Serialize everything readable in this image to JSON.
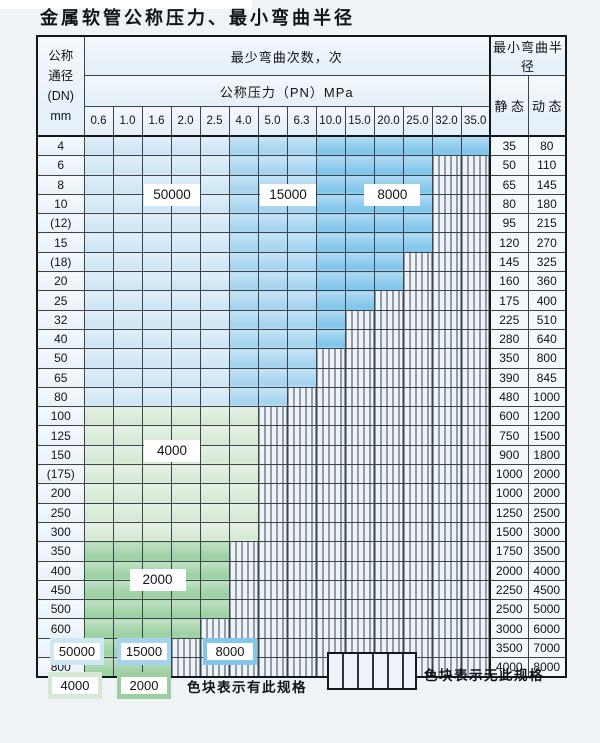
{
  "title": "金属软管公称压力、最小弯曲半径",
  "colors": {
    "c50000": "#cfe6f5",
    "c15000": "#a5d4f0",
    "c8000": "#82c6ec",
    "c4000": "#d6e9d4",
    "c2000": "#9cd0a2",
    "hatch_bg": "#edf3f9",
    "grid": "#39444c"
  },
  "table": {
    "corner_lines": [
      "公称",
      "通径",
      "(DN)",
      "mm"
    ],
    "bend_times_header": "最少弯曲次数，次",
    "pressure_header": "公称压力（PN）MPa",
    "radius_header": "最小弯曲半径",
    "static_label": "静 态",
    "dynamic_label": "动 态",
    "pressures": [
      "0.6",
      "1.0",
      "1.6",
      "2.0",
      "2.5",
      "4.0",
      "5.0",
      "6.3",
      "10.0",
      "15.0",
      "20.0",
      "25.0",
      "32.0",
      "35.0"
    ],
    "rows": [
      {
        "dn": "4",
        "static": "35",
        "dynamic": "80",
        "through": "35.0",
        "group": "blue"
      },
      {
        "dn": "6",
        "static": "50",
        "dynamic": "110",
        "through": "25.0",
        "group": "blue"
      },
      {
        "dn": "8",
        "static": "65",
        "dynamic": "145",
        "through": "25.0",
        "group": "blue"
      },
      {
        "dn": "10",
        "static": "80",
        "dynamic": "180",
        "through": "25.0",
        "group": "blue"
      },
      {
        "dn": "(12)",
        "static": "95",
        "dynamic": "215",
        "through": "25.0",
        "group": "blue"
      },
      {
        "dn": "15",
        "static": "120",
        "dynamic": "270",
        "through": "25.0",
        "group": "blue"
      },
      {
        "dn": "(18)",
        "static": "145",
        "dynamic": "325",
        "through": "20.0",
        "group": "blue"
      },
      {
        "dn": "20",
        "static": "160",
        "dynamic": "360",
        "through": "20.0",
        "group": "blue"
      },
      {
        "dn": "25",
        "static": "175",
        "dynamic": "400",
        "through": "15.0",
        "group": "blue"
      },
      {
        "dn": "32",
        "static": "225",
        "dynamic": "510",
        "through": "10.0",
        "group": "blue"
      },
      {
        "dn": "40",
        "static": "280",
        "dynamic": "640",
        "through": "10.0",
        "group": "blue"
      },
      {
        "dn": "50",
        "static": "350",
        "dynamic": "800",
        "through": "6.3",
        "group": "blue"
      },
      {
        "dn": "65",
        "static": "390",
        "dynamic": "845",
        "through": "6.3",
        "group": "blue"
      },
      {
        "dn": "80",
        "static": "480",
        "dynamic": "1000",
        "through": "5.0",
        "group": "blue"
      },
      {
        "dn": "100",
        "static": "600",
        "dynamic": "1200",
        "through": "4.0",
        "group": "c4000"
      },
      {
        "dn": "125",
        "static": "750",
        "dynamic": "1500",
        "through": "4.0",
        "group": "c4000"
      },
      {
        "dn": "150",
        "static": "900",
        "dynamic": "1800",
        "through": "4.0",
        "group": "c4000"
      },
      {
        "dn": "(175)",
        "static": "1000",
        "dynamic": "2000",
        "through": "4.0",
        "group": "c4000"
      },
      {
        "dn": "200",
        "static": "1000",
        "dynamic": "2000",
        "through": "4.0",
        "group": "c4000"
      },
      {
        "dn": "250",
        "static": "1250",
        "dynamic": "2500",
        "through": "4.0",
        "group": "c4000"
      },
      {
        "dn": "300",
        "static": "1500",
        "dynamic": "3000",
        "through": "4.0",
        "group": "c4000"
      },
      {
        "dn": "350",
        "static": "1750",
        "dynamic": "3500",
        "through": "2.5",
        "group": "c2000"
      },
      {
        "dn": "400",
        "static": "2000",
        "dynamic": "4000",
        "through": "2.5",
        "group": "c2000"
      },
      {
        "dn": "450",
        "static": "2250",
        "dynamic": "4500",
        "through": "2.5",
        "group": "c2000"
      },
      {
        "dn": "500",
        "static": "2500",
        "dynamic": "5000",
        "through": "2.5",
        "group": "c2000"
      },
      {
        "dn": "600",
        "static": "3000",
        "dynamic": "6000",
        "through": "2.0",
        "group": "c2000"
      },
      {
        "dn": "700",
        "static": "3500",
        "dynamic": "7000",
        "through": "1.6",
        "group": "c2000"
      },
      {
        "dn": "800",
        "static": "4000",
        "dynamic": "8000",
        "through": "1.6",
        "group": "c2000"
      }
    ]
  },
  "region_labels": [
    {
      "text": "50000",
      "col_boundary": 3,
      "row_boundary": 4
    },
    {
      "text": "15000",
      "col_boundary": 7,
      "row_boundary": 4
    },
    {
      "text": "8000",
      "col_boundary": 10.6,
      "row_boundary": 4
    },
    {
      "text": "4000",
      "col_boundary": 3,
      "row_boundary": 18
    },
    {
      "text": "2000",
      "col_boundary": 2.5,
      "row_boundary": 25
    }
  ],
  "legend": {
    "items_available": [
      {
        "label": "50000",
        "color_key": "c50000"
      },
      {
        "label": "15000",
        "color_key": "c15000"
      },
      {
        "label": "8000",
        "color_key": "c8000"
      },
      {
        "label": "4000",
        "color_key": "c4000"
      },
      {
        "label": "2000",
        "color_key": "c2000"
      }
    ],
    "available_note": "色块表示有此规格",
    "unavailable_note": "色块表示无此规格"
  },
  "chart_data": {
    "type": "table",
    "title": "金属软管公称压力、最小弯曲半径",
    "pn_columns_mpa": [
      0.6,
      1.0,
      1.6,
      2.0,
      2.5,
      4.0,
      5.0,
      6.3,
      10.0,
      15.0,
      20.0,
      25.0,
      32.0,
      35.0
    ],
    "row_columns": [
      "DN",
      "max_available_PN",
      "static_radius",
      "dynamic_radius"
    ],
    "rows": [
      [
        "4",
        35.0,
        35,
        80
      ],
      [
        "6",
        25.0,
        50,
        110
      ],
      [
        "8",
        25.0,
        65,
        145
      ],
      [
        "10",
        25.0,
        80,
        180
      ],
      [
        "(12)",
        25.0,
        95,
        215
      ],
      [
        "15",
        25.0,
        120,
        270
      ],
      [
        "(18)",
        20.0,
        145,
        325
      ],
      [
        "20",
        20.0,
        160,
        360
      ],
      [
        "25",
        15.0,
        175,
        400
      ],
      [
        "32",
        10.0,
        225,
        510
      ],
      [
        "40",
        10.0,
        280,
        640
      ],
      [
        "50",
        6.3,
        350,
        800
      ],
      [
        "65",
        6.3,
        390,
        845
      ],
      [
        "80",
        5.0,
        480,
        1000
      ],
      [
        "100",
        4.0,
        600,
        1200
      ],
      [
        "125",
        4.0,
        750,
        1500
      ],
      [
        "150",
        4.0,
        900,
        1800
      ],
      [
        "(175)",
        4.0,
        1000,
        2000
      ],
      [
        "200",
        4.0,
        1000,
        2000
      ],
      [
        "250",
        4.0,
        1250,
        2500
      ],
      [
        "300",
        4.0,
        1500,
        3000
      ],
      [
        "350",
        2.5,
        1750,
        3500
      ],
      [
        "400",
        2.5,
        2000,
        4000
      ],
      [
        "450",
        2.5,
        2250,
        4500
      ],
      [
        "500",
        2.5,
        2500,
        5000
      ],
      [
        "600",
        2.0,
        3000,
        6000
      ],
      [
        "700",
        1.6,
        3500,
        7000
      ],
      [
        "800",
        1.6,
        4000,
        8000
      ]
    ],
    "bend_cycles_by_region": {
      "DN4-80_PN0.6-2.5": 50000,
      "DN4-80_PN4.0-6.3": 15000,
      "DN4-80_PN10.0-35.0": 8000,
      "DN100-300": 4000,
      "DN350-800": 2000
    },
    "notes": [
      "色块表示有此规格",
      "色块表示无此规格"
    ],
    "legend_position": "bottom"
  }
}
